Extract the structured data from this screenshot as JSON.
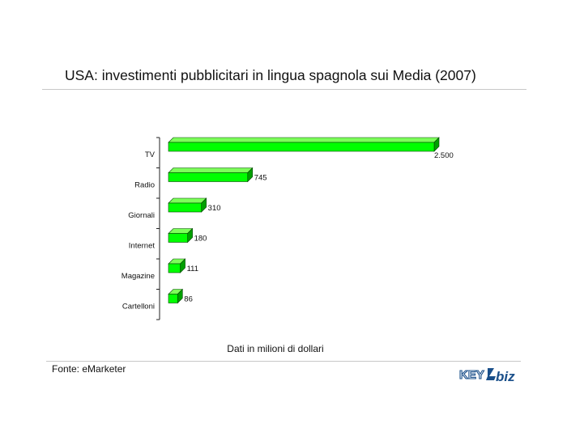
{
  "page": {
    "title": "USA: investimenti pubblicitari in lingua spagnola sui Media (2007)",
    "source": "Fonte: eMarketer",
    "logo_text_left": "KEY",
    "logo_text_right": "biz"
  },
  "colors": {
    "bar_front": "#00ff00",
    "bar_top": "#7dff5a",
    "bar_side": "#00a000",
    "bar_edge": "#004400"
  },
  "chart_data": {
    "type": "bar",
    "orientation": "horizontal",
    "title": "USA: investimenti pubblicitari in lingua spagnola sui Media (2007)",
    "xlabel": "Dati in milioni di dollari",
    "categories": [
      "TV",
      "Radio",
      "Giornali",
      "Internet",
      "Magazine",
      "Cartelloni"
    ],
    "values": [
      2500,
      745,
      310,
      180,
      111,
      86
    ],
    "value_labels": [
      "2.500",
      "745",
      "310",
      "180",
      "111",
      "86"
    ],
    "xlim": [
      0,
      2500
    ],
    "grid": false,
    "legend": "none"
  }
}
